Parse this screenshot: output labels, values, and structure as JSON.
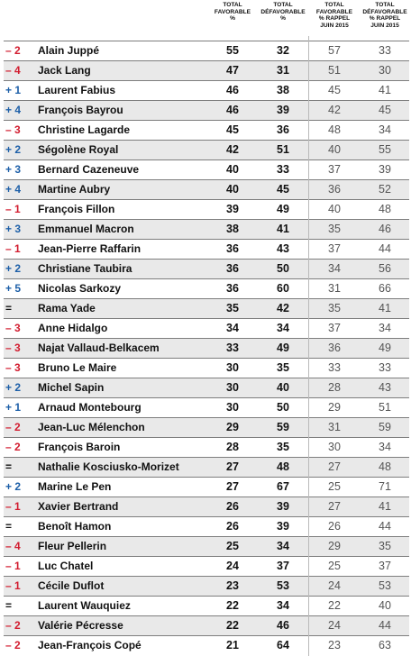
{
  "chart_data": {
    "type": "table",
    "columns": [
      [
        "TOTAL",
        "FAVORABLE",
        "%"
      ],
      [
        "TOTAL",
        "DÉFAVORABLE",
        "%"
      ],
      [
        "TOTAL",
        "FAVORABLE",
        "% RAPPEL",
        "JUIN 2015"
      ],
      [
        "TOTAL",
        "DÉFAVORABLE",
        "% RAPPEL",
        "JUIN 2015"
      ]
    ],
    "rows": [
      {
        "delta": "– 2",
        "name": "Alain Juppé",
        "fav": 55,
        "defav": 32,
        "fav_2015": 57,
        "defav_2015": 33
      },
      {
        "delta": "– 4",
        "name": "Jack Lang",
        "fav": 47,
        "defav": 31,
        "fav_2015": 51,
        "defav_2015": 30
      },
      {
        "delta": "+ 1",
        "name": "Laurent Fabius",
        "fav": 46,
        "defav": 38,
        "fav_2015": 45,
        "defav_2015": 41
      },
      {
        "delta": "+ 4",
        "name": "François Bayrou",
        "fav": 46,
        "defav": 39,
        "fav_2015": 42,
        "defav_2015": 45
      },
      {
        "delta": "– 3",
        "name": "Christine Lagarde",
        "fav": 45,
        "defav": 36,
        "fav_2015": 48,
        "defav_2015": 34
      },
      {
        "delta": "+ 2",
        "name": "Ségolène Royal",
        "fav": 42,
        "defav": 51,
        "fav_2015": 40,
        "defav_2015": 55
      },
      {
        "delta": "+ 3",
        "name": "Bernard Cazeneuve",
        "fav": 40,
        "defav": 33,
        "fav_2015": 37,
        "defav_2015": 39
      },
      {
        "delta": "+ 4",
        "name": "Martine Aubry",
        "fav": 40,
        "defav": 45,
        "fav_2015": 36,
        "defav_2015": 52
      },
      {
        "delta": "– 1",
        "name": "François Fillon",
        "fav": 39,
        "defav": 49,
        "fav_2015": 40,
        "defav_2015": 48
      },
      {
        "delta": "+ 3",
        "name": "Emmanuel Macron",
        "fav": 38,
        "defav": 41,
        "fav_2015": 35,
        "defav_2015": 46
      },
      {
        "delta": "– 1",
        "name": "Jean-Pierre Raffarin",
        "fav": 36,
        "defav": 43,
        "fav_2015": 37,
        "defav_2015": 44
      },
      {
        "delta": "+ 2",
        "name": "Christiane Taubira",
        "fav": 36,
        "defav": 50,
        "fav_2015": 34,
        "defav_2015": 56
      },
      {
        "delta": "+ 5",
        "name": "Nicolas Sarkozy",
        "fav": 36,
        "defav": 60,
        "fav_2015": 31,
        "defav_2015": 66
      },
      {
        "delta": "=",
        "name": "Rama Yade",
        "fav": 35,
        "defav": 42,
        "fav_2015": 35,
        "defav_2015": 41
      },
      {
        "delta": "– 3",
        "name": "Anne Hidalgo",
        "fav": 34,
        "defav": 34,
        "fav_2015": 37,
        "defav_2015": 34
      },
      {
        "delta": "– 3",
        "name": "Najat Vallaud-Belkacem",
        "fav": 33,
        "defav": 49,
        "fav_2015": 36,
        "defav_2015": 49
      },
      {
        "delta": "– 3",
        "name": "Bruno Le Maire",
        "fav": 30,
        "defav": 35,
        "fav_2015": 33,
        "defav_2015": 33
      },
      {
        "delta": "+ 2",
        "name": "Michel Sapin",
        "fav": 30,
        "defav": 40,
        "fav_2015": 28,
        "defav_2015": 43
      },
      {
        "delta": "+ 1",
        "name": "Arnaud Montebourg",
        "fav": 30,
        "defav": 50,
        "fav_2015": 29,
        "defav_2015": 51
      },
      {
        "delta": "– 2",
        "name": "Jean-Luc Mélenchon",
        "fav": 29,
        "defav": 59,
        "fav_2015": 31,
        "defav_2015": 59
      },
      {
        "delta": "– 2",
        "name": "François Baroin",
        "fav": 28,
        "defav": 35,
        "fav_2015": 30,
        "defav_2015": 34
      },
      {
        "delta": "=",
        "name": "Nathalie Kosciusko-Morizet",
        "fav": 27,
        "defav": 48,
        "fav_2015": 27,
        "defav_2015": 48
      },
      {
        "delta": "+ 2",
        "name": "Marine Le Pen",
        "fav": 27,
        "defav": 67,
        "fav_2015": 25,
        "defav_2015": 71
      },
      {
        "delta": "– 1",
        "name": "Xavier Bertrand",
        "fav": 26,
        "defav": 39,
        "fav_2015": 27,
        "defav_2015": 41
      },
      {
        "delta": "=",
        "name": "Benoît Hamon",
        "fav": 26,
        "defav": 39,
        "fav_2015": 26,
        "defav_2015": 44
      },
      {
        "delta": "– 4",
        "name": "Fleur Pellerin",
        "fav": 25,
        "defav": 34,
        "fav_2015": 29,
        "defav_2015": 35
      },
      {
        "delta": "– 1",
        "name": "Luc Chatel",
        "fav": 24,
        "defav": 37,
        "fav_2015": 25,
        "defav_2015": 37
      },
      {
        "delta": "– 1",
        "name": "Cécile Duflot",
        "fav": 23,
        "defav": 53,
        "fav_2015": 24,
        "defav_2015": 53
      },
      {
        "delta": "=",
        "name": "Laurent Wauquiez",
        "fav": 22,
        "defav": 34,
        "fav_2015": 22,
        "defav_2015": 40
      },
      {
        "delta": "– 2",
        "name": "Valérie Pécresse",
        "fav": 22,
        "defav": 46,
        "fav_2015": 24,
        "defav_2015": 44
      },
      {
        "delta": "– 2",
        "name": "Jean-François Copé",
        "fav": 21,
        "defav": 64,
        "fav_2015": 23,
        "defav_2015": 63
      }
    ],
    "colors": {
      "negative": "#d21c2f",
      "positive": "#1d5fa8",
      "neutral": "#111111",
      "alt_row": "#e9e9e9"
    }
  }
}
